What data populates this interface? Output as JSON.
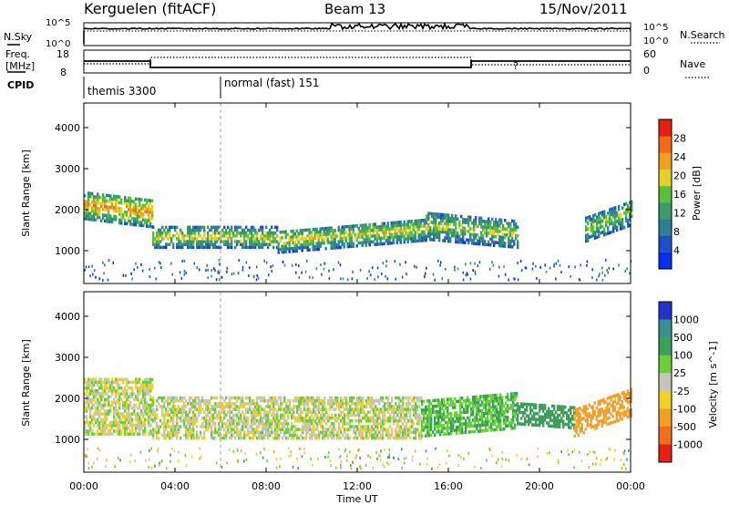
{
  "header": {
    "station": "Kerguelen (fitACF)",
    "beam": "Beam 13",
    "date": "15/Nov/2011"
  },
  "noise_panel": {
    "left_label": "N.Sky",
    "left_ticks": [
      "10^5",
      "10^0"
    ],
    "right_ticks": [
      "10^5",
      "10^0"
    ],
    "right_label": "N.Search"
  },
  "freq_panel": {
    "left_label_line1": "Freq.",
    "left_label_line2": "[MHz]",
    "left_ticks": [
      "18",
      "8"
    ],
    "right_ticks": [
      "60",
      "0"
    ],
    "right_label": "Nave"
  },
  "cpid_panel": {
    "label": "CPID",
    "modes": [
      {
        "name": "themis 3300",
        "start_hour": 0
      },
      {
        "name": "normal (fast) 151",
        "start_hour": 6
      }
    ]
  },
  "time_axis": {
    "label": "Time UT",
    "ticks": [
      "00:00",
      "04:00",
      "08:00",
      "12:00",
      "16:00",
      "20:00",
      "00:00"
    ],
    "range_hours": [
      0,
      24
    ]
  },
  "chart_data": [
    {
      "type": "heatmap",
      "ylabel": "Slant Range [km]",
      "ylim": [
        200,
        4600
      ],
      "y_ticks": [
        "1000",
        "2000",
        "3000",
        "4000"
      ],
      "x_range_hours": [
        0,
        24
      ],
      "colorbar": {
        "label": "Power [dB]",
        "ticks": [
          "28",
          "24",
          "20",
          "16",
          "12",
          "8",
          "4"
        ],
        "range": [
          0,
          32
        ]
      },
      "echo_regions": [
        {
          "t_start": 0.0,
          "t_end": 3.0,
          "range_center_start": 2100,
          "range_center_end": 1900,
          "width": 700,
          "level_db": 24
        },
        {
          "t_start": 3.0,
          "t_end": 8.5,
          "range_center_start": 1300,
          "range_center_end": 1300,
          "width": 500,
          "level_db": 20
        },
        {
          "t_start": 8.5,
          "t_end": 15.0,
          "range_center_start": 1200,
          "range_center_end": 1500,
          "width": 550,
          "level_db": 20
        },
        {
          "t_start": 15.0,
          "t_end": 19.0,
          "range_center_start": 1600,
          "range_center_end": 1400,
          "width": 700,
          "level_db": 18
        },
        {
          "t_start": 22.0,
          "t_end": 24.0,
          "range_center_start": 1500,
          "range_center_end": 1900,
          "width": 600,
          "level_db": 18
        }
      ]
    },
    {
      "type": "heatmap",
      "ylabel": "Slant Range [km]",
      "ylim": [
        200,
        4600
      ],
      "y_ticks": [
        "1000",
        "2000",
        "3000",
        "4000"
      ],
      "x_range_hours": [
        0,
        24
      ],
      "colorbar": {
        "label": "Velocity [m s^-1]",
        "ticks": [
          "1000",
          "500",
          "100",
          "25",
          "-25",
          "-100",
          "-500",
          "-1000"
        ]
      },
      "echo_regions": [
        {
          "t_start": 0.0,
          "t_end": 3.0,
          "range_center_start": 1800,
          "range_center_end": 1800,
          "width": 1400,
          "velocity_ms": 0
        },
        {
          "t_start": 3.0,
          "t_end": 14.8,
          "range_center_start": 1500,
          "range_center_end": 1500,
          "width": 1000,
          "velocity_ms": 0
        },
        {
          "t_start": 14.8,
          "t_end": 19.0,
          "range_center_start": 1500,
          "range_center_end": 1700,
          "width": 900,
          "velocity_ms": 100
        },
        {
          "t_start": 19.0,
          "t_end": 21.5,
          "range_center_start": 1600,
          "range_center_end": 1500,
          "width": 500,
          "velocity_ms": 200
        },
        {
          "t_start": 21.5,
          "t_end": 24.0,
          "range_center_start": 1400,
          "range_center_end": 1900,
          "width": 700,
          "velocity_ms": -150
        }
      ]
    }
  ]
}
